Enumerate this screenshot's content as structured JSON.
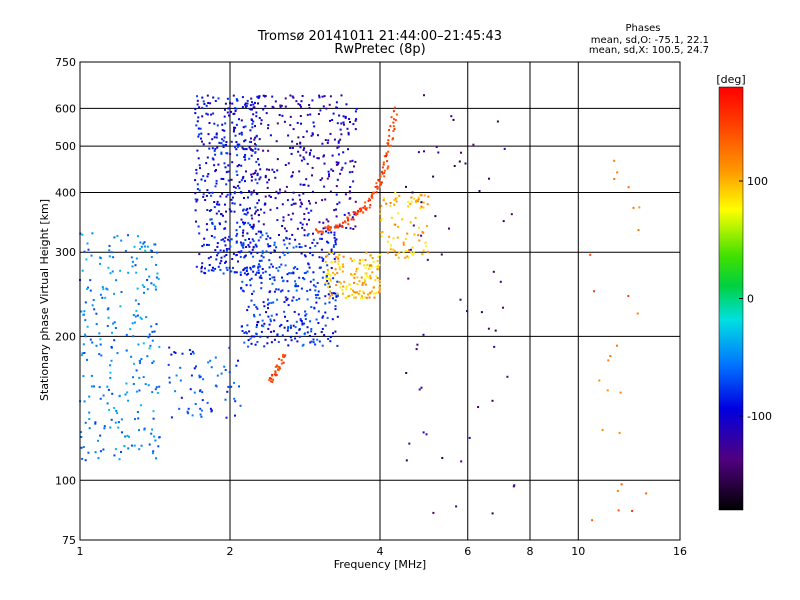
{
  "chart_data": {
    "type": "scatter",
    "title": "Tromsø 20141011 21:44:00–21:45:43",
    "subtitle": "RwPretec (8p)",
    "xlabel": "Frequency [MHz]",
    "ylabel": "Stationary phase Virtual Height [km]",
    "x_scale": "log",
    "y_scale": "log",
    "xlim": [
      1,
      16
    ],
    "ylim": [
      75,
      750
    ],
    "x_ticks": [
      1,
      2,
      4,
      6,
      8,
      10,
      16
    ],
    "x_tick_labels": [
      "1",
      "2",
      "4",
      "6",
      "8",
      "10",
      "16"
    ],
    "y_ticks": [
      75,
      100,
      200,
      300,
      400,
      500,
      600,
      750
    ],
    "y_tick_labels": [
      "75",
      "100",
      "200",
      "300",
      "400",
      "500",
      "600",
      "750"
    ],
    "grid": true,
    "legend": {
      "title": "Phases",
      "lines": [
        "mean, sd,O: -75.1, 22.1",
        "mean, sd,X: 100.5, 24.7"
      ],
      "position": "top-right"
    },
    "colorbar": {
      "label": "[deg]",
      "min": -180,
      "max": 180,
      "ticks": [
        100,
        0,
        -100
      ],
      "tick_labels": [
        "100",
        "0",
        "-100"
      ],
      "colormap": "rainbow"
    },
    "clusters": [
      {
        "x": [
          1.0,
          1.45
        ],
        "y": [
          110,
          330
        ],
        "phase": -55,
        "count": 260
      },
      {
        "x": [
          1.7,
          2.3
        ],
        "y": [
          270,
          640
        ],
        "phase": -95,
        "count": 420
      },
      {
        "x": [
          2.1,
          3.3
        ],
        "y": [
          190,
          330
        ],
        "phase": -85,
        "count": 380
      },
      {
        "x": [
          2.2,
          3.6
        ],
        "y": [
          330,
          640
        ],
        "phase": -115,
        "count": 320
      },
      {
        "x": [
          1.5,
          2.1
        ],
        "y": [
          135,
          190
        ],
        "phase": -75,
        "count": 70
      },
      {
        "x": [
          3.1,
          4.0
        ],
        "y": [
          240,
          300
        ],
        "phase": 100,
        "count": 150
      },
      {
        "x": [
          4.0,
          5.0
        ],
        "y": [
          290,
          400
        ],
        "phase": 105,
        "count": 90
      },
      {
        "x": [
          4.5,
          7.5
        ],
        "y": [
          80,
          640
        ],
        "phase": -140,
        "count": 60
      },
      {
        "x": [
          10.5,
          14.0
        ],
        "y": [
          80,
          480
        ],
        "phase": 130,
        "count": 25
      }
    ],
    "traces": [
      {
        "x": [
          3.0,
          3.4,
          3.8,
          4.1,
          4.3
        ],
        "y": [
          330,
          345,
          380,
          450,
          600
        ],
        "phase": 150
      },
      {
        "x": [
          2.4,
          2.6
        ],
        "y": [
          160,
          185
        ],
        "phase": 150
      }
    ]
  }
}
